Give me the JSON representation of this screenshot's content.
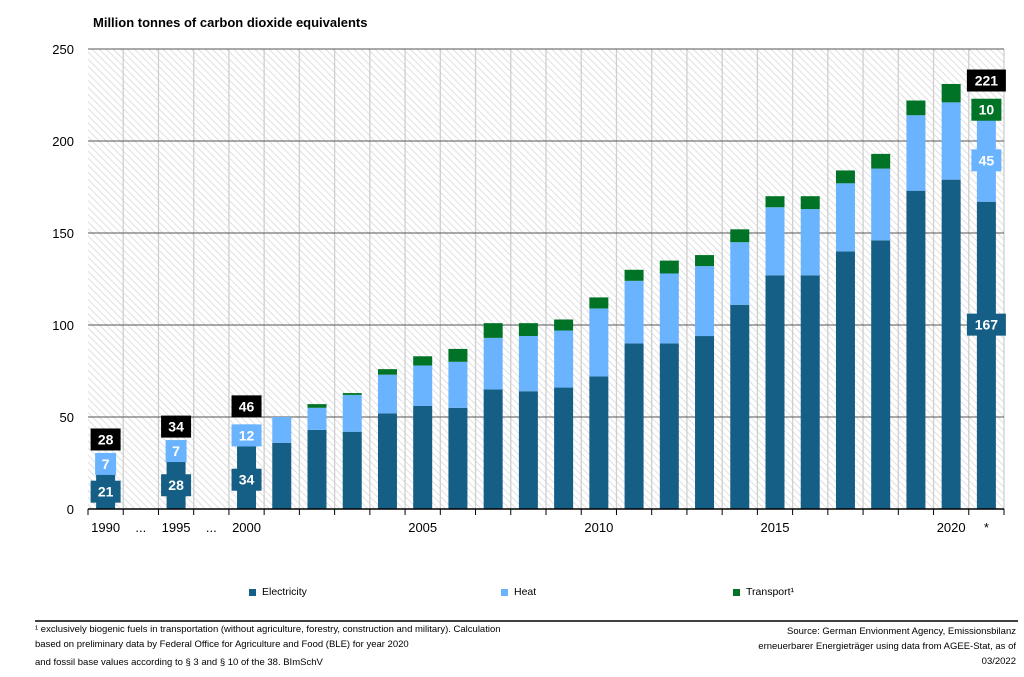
{
  "chart_data": {
    "type": "bar",
    "stacked": true,
    "title": "Million tonnes of carbon dioxide equivalents",
    "xlabel": "",
    "ylabel": "Million tonnes of carbon dioxide equivalents",
    "ylim": [
      0,
      250
    ],
    "yticks": [
      0,
      50,
      100,
      150,
      200,
      250
    ],
    "grid": true,
    "legend_position": "bottom",
    "categories": [
      "1990",
      "...",
      "1995",
      "...",
      "2000",
      "2001",
      "2002",
      "2003",
      "2004",
      "2005",
      "2006",
      "2007",
      "2008",
      "2009",
      "2010",
      "2011",
      "2012",
      "2013",
      "2014",
      "2015",
      "2016",
      "2017",
      "2018",
      "2019",
      "2020",
      "2021"
    ],
    "xtick_labels": [
      {
        "index": 0,
        "text": "1990"
      },
      {
        "index": 1,
        "text": "..."
      },
      {
        "index": 2,
        "text": "1995"
      },
      {
        "index": 3,
        "text": "..."
      },
      {
        "index": 4,
        "text": "2000"
      },
      {
        "index": 9,
        "text": "2005"
      },
      {
        "index": 14,
        "text": "2010"
      },
      {
        "index": 19,
        "text": "2015"
      },
      {
        "index": 24,
        "text": "2020"
      },
      {
        "index": 25,
        "text": "*"
      }
    ],
    "series": [
      {
        "name": "Electricity",
        "color": "#155e86",
        "values": [
          21,
          null,
          28,
          null,
          34,
          36,
          43,
          42,
          52,
          56,
          55,
          65,
          64,
          66,
          72,
          90,
          90,
          94,
          111,
          127,
          127,
          140,
          146,
          173,
          179,
          167
        ]
      },
      {
        "name": "Heat",
        "color": "#6ab4ff",
        "values": [
          7,
          null,
          7,
          null,
          12,
          14,
          12,
          20,
          21,
          22,
          25,
          28,
          30,
          31,
          37,
          34,
          38,
          38,
          34,
          37,
          36,
          37,
          39,
          41,
          42,
          45
        ]
      },
      {
        "name": "Transport¹",
        "color": "#007326",
        "values": [
          0,
          null,
          0,
          null,
          0,
          0,
          2,
          1,
          3,
          5,
          7,
          8,
          7,
          6,
          6,
          6,
          7,
          6,
          7,
          6,
          7,
          7,
          8,
          8,
          10,
          10
        ]
      }
    ],
    "annotations": [
      {
        "index": 0,
        "kind": "total",
        "text": "28"
      },
      {
        "index": 0,
        "kind": "heat",
        "text": "7"
      },
      {
        "index": 0,
        "kind": "elec",
        "text": "21"
      },
      {
        "index": 2,
        "kind": "total",
        "text": "34"
      },
      {
        "index": 2,
        "kind": "heat",
        "text": "7"
      },
      {
        "index": 2,
        "kind": "elec",
        "text": "28"
      },
      {
        "index": 4,
        "kind": "total",
        "text": "46"
      },
      {
        "index": 4,
        "kind": "heat",
        "text": "12"
      },
      {
        "index": 4,
        "kind": "elec",
        "text": "34"
      },
      {
        "index": 25,
        "kind": "total",
        "text": "221"
      },
      {
        "index": 25,
        "kind": "transport",
        "text": "10"
      },
      {
        "index": 25,
        "kind": "heat",
        "text": "45"
      },
      {
        "index": 25,
        "kind": "elec",
        "text": "167"
      }
    ]
  },
  "legend": [
    "Electricity",
    "Heat",
    "Transport¹"
  ],
  "footnote": {
    "line1": "¹ exclusively biogenic fuels in transportation (without agriculture, forestry, construction and military). Calculation",
    "line2": "based on preliminary data by Federal Office for Agriculture and Food (BLE) for year 2020",
    "line3": "and fossil base values according to § 3 and § 10 of the 38. BImSchV"
  },
  "source": {
    "line1": "Source: German Envionment Agency, Emissionsbilanz",
    "line2": "erneuerbarer Energieträger using data from AGEE-Stat, as of",
    "line3": "03/2022"
  }
}
